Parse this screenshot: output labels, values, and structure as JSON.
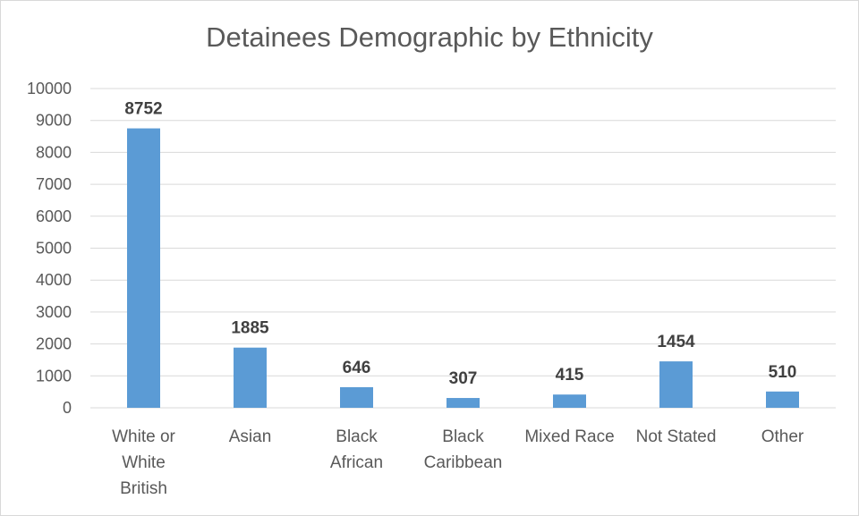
{
  "chart_data": {
    "type": "bar",
    "title": "Detainees Demographic by Ethnicity",
    "categories": [
      [
        "White or",
        "White",
        "British"
      ],
      [
        "Asian"
      ],
      [
        "Black",
        "African"
      ],
      [
        "Black",
        "Caribbean"
      ],
      [
        "Mixed Race"
      ],
      [
        "Not Stated"
      ],
      [
        "Other"
      ]
    ],
    "values": [
      8752,
      1885,
      646,
      307,
      415,
      1454,
      510
    ],
    "ylim": [
      0,
      10000
    ],
    "yticks": [
      0,
      1000,
      2000,
      3000,
      4000,
      5000,
      6000,
      7000,
      8000,
      9000,
      10000
    ],
    "data_labels": true,
    "grid": true,
    "legend": "none",
    "bar_color": "#5b9bd5",
    "grid_color": "#d9d9d9"
  }
}
